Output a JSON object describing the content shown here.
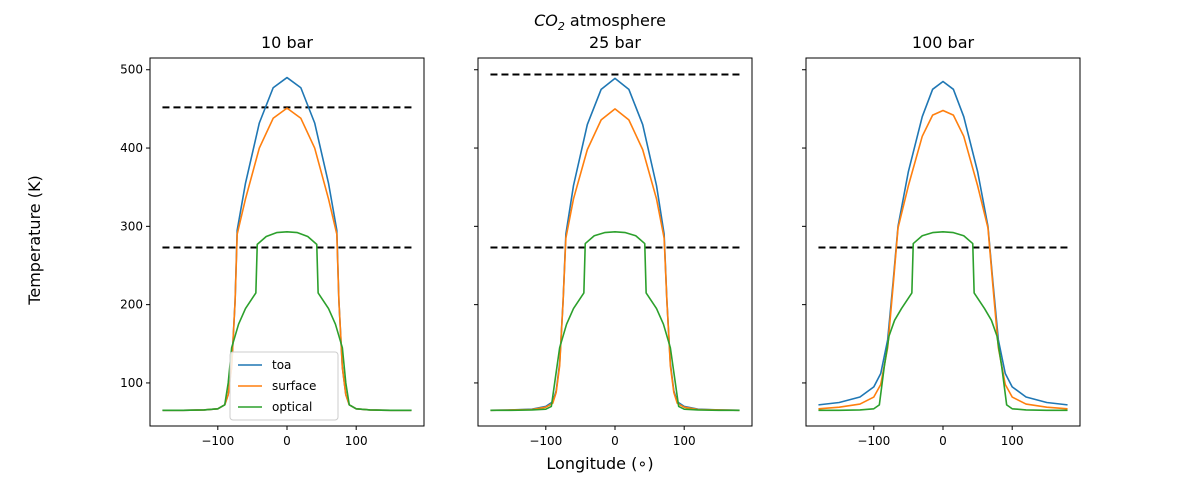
{
  "figure": {
    "suptitle_main": "CO",
    "suptitle_sub": "2",
    "suptitle_rest": " atmosphere",
    "ylabel": "Temperature (K)",
    "xlabel": "Longitude (∘)"
  },
  "chart_data": [
    {
      "type": "line",
      "title": "10 bar",
      "xlim": [
        -198,
        198
      ],
      "ylim": [
        45,
        515
      ],
      "xticks": [
        -100,
        0,
        100
      ],
      "yticks": [
        100,
        200,
        300,
        400,
        500
      ],
      "show_yticklabels": true,
      "legend": {
        "placement": "lower-center",
        "entries": [
          "toa",
          "surface",
          "optical"
        ]
      },
      "hlines": [
        452,
        273
      ],
      "series": [
        {
          "name": "toa",
          "color": "#1f77b4",
          "points": [
            [
              -180,
              65
            ],
            [
              -150,
              65
            ],
            [
              -120,
              65.5
            ],
            [
              -100,
              67
            ],
            [
              -90,
              72
            ],
            [
              -85,
              85
            ],
            [
              -80,
              120
            ],
            [
              -75,
              205
            ],
            [
              -72,
              295
            ],
            [
              -60,
              355
            ],
            [
              -40,
              432
            ],
            [
              -20,
              477
            ],
            [
              0,
              490
            ],
            [
              20,
              477
            ],
            [
              40,
              432
            ],
            [
              60,
              355
            ],
            [
              72,
              295
            ],
            [
              75,
              205
            ],
            [
              80,
              120
            ],
            [
              85,
              85
            ],
            [
              90,
              72
            ],
            [
              100,
              67
            ],
            [
              120,
              65.5
            ],
            [
              150,
              65
            ],
            [
              180,
              65
            ]
          ]
        },
        {
          "name": "surface",
          "color": "#ff7f0e",
          "points": [
            [
              -180,
              65
            ],
            [
              -150,
              65
            ],
            [
              -120,
              65.5
            ],
            [
              -100,
              67
            ],
            [
              -90,
              72
            ],
            [
              -85,
              85
            ],
            [
              -80,
              120
            ],
            [
              -75,
              205
            ],
            [
              -72,
              290
            ],
            [
              -60,
              335
            ],
            [
              -40,
              400
            ],
            [
              -20,
              438
            ],
            [
              0,
              451
            ],
            [
              20,
              438
            ],
            [
              40,
              400
            ],
            [
              60,
              335
            ],
            [
              72,
              290
            ],
            [
              75,
              205
            ],
            [
              80,
              120
            ],
            [
              85,
              85
            ],
            [
              90,
              72
            ],
            [
              100,
              67
            ],
            [
              120,
              65.5
            ],
            [
              150,
              65
            ],
            [
              180,
              65
            ]
          ]
        },
        {
          "name": "optical",
          "color": "#2ca02c",
          "points": [
            [
              -180,
              65
            ],
            [
              -150,
              65
            ],
            [
              -120,
              65.5
            ],
            [
              -100,
              67
            ],
            [
              -90,
              72
            ],
            [
              -85,
              100
            ],
            [
              -80,
              145
            ],
            [
              -70,
              175
            ],
            [
              -60,
              195
            ],
            [
              -45,
              215
            ],
            [
              -43,
              277
            ],
            [
              -30,
              287
            ],
            [
              -15,
              292
            ],
            [
              0,
              293
            ],
            [
              15,
              292
            ],
            [
              30,
              287
            ],
            [
              43,
              277
            ],
            [
              45,
              215
            ],
            [
              60,
              195
            ],
            [
              70,
              175
            ],
            [
              80,
              145
            ],
            [
              85,
              100
            ],
            [
              90,
              72
            ],
            [
              100,
              67
            ],
            [
              120,
              65.5
            ],
            [
              150,
              65
            ],
            [
              180,
              65
            ]
          ]
        }
      ]
    },
    {
      "type": "line",
      "title": "25 bar",
      "xlim": [
        -198,
        198
      ],
      "ylim": [
        45,
        515
      ],
      "xticks": [
        -100,
        0,
        100
      ],
      "yticks": [
        100,
        200,
        300,
        400,
        500
      ],
      "show_yticklabels": false,
      "hlines": [
        494,
        273
      ],
      "series": [
        {
          "name": "toa",
          "color": "#1f77b4",
          "points": [
            [
              -180,
              65
            ],
            [
              -150,
              65.5
            ],
            [
              -120,
              66.5
            ],
            [
              -100,
              70
            ],
            [
              -90,
              76
            ],
            [
              -85,
              90
            ],
            [
              -80,
              125
            ],
            [
              -75,
              205
            ],
            [
              -71,
              290
            ],
            [
              -60,
              352
            ],
            [
              -40,
              430
            ],
            [
              -20,
              475
            ],
            [
              0,
              489
            ],
            [
              20,
              475
            ],
            [
              40,
              430
            ],
            [
              60,
              352
            ],
            [
              71,
              290
            ],
            [
              75,
              205
            ],
            [
              80,
              125
            ],
            [
              85,
              90
            ],
            [
              90,
              76
            ],
            [
              100,
              70
            ],
            [
              120,
              66.5
            ],
            [
              150,
              65.5
            ],
            [
              180,
              65
            ]
          ]
        },
        {
          "name": "surface",
          "color": "#ff7f0e",
          "points": [
            [
              -180,
              65
            ],
            [
              -150,
              65.5
            ],
            [
              -120,
              66
            ],
            [
              -100,
              69
            ],
            [
              -90,
              74
            ],
            [
              -85,
              88
            ],
            [
              -80,
              122
            ],
            [
              -75,
              205
            ],
            [
              -71,
              285
            ],
            [
              -60,
              335
            ],
            [
              -40,
              398
            ],
            [
              -20,
              436
            ],
            [
              0,
              450
            ],
            [
              20,
              436
            ],
            [
              40,
              398
            ],
            [
              60,
              335
            ],
            [
              71,
              285
            ],
            [
              75,
              205
            ],
            [
              80,
              122
            ],
            [
              85,
              88
            ],
            [
              90,
              74
            ],
            [
              100,
              69
            ],
            [
              120,
              66
            ],
            [
              150,
              65.5
            ],
            [
              180,
              65
            ]
          ]
        },
        {
          "name": "optical",
          "color": "#2ca02c",
          "points": [
            [
              -180,
              65
            ],
            [
              -150,
              65
            ],
            [
              -120,
              65.5
            ],
            [
              -100,
              66.5
            ],
            [
              -92,
              70
            ],
            [
              -88,
              95
            ],
            [
              -80,
              145
            ],
            [
              -70,
              175
            ],
            [
              -60,
              195
            ],
            [
              -45,
              215
            ],
            [
              -43,
              278
            ],
            [
              -30,
              288
            ],
            [
              -15,
              292
            ],
            [
              0,
              293
            ],
            [
              15,
              292
            ],
            [
              30,
              288
            ],
            [
              43,
              278
            ],
            [
              45,
              215
            ],
            [
              60,
              195
            ],
            [
              70,
              175
            ],
            [
              80,
              145
            ],
            [
              88,
              95
            ],
            [
              92,
              70
            ],
            [
              100,
              66.5
            ],
            [
              120,
              65.5
            ],
            [
              150,
              65
            ],
            [
              180,
              65
            ]
          ]
        }
      ]
    },
    {
      "type": "line",
      "title": "100 bar",
      "xlim": [
        -198,
        198
      ],
      "ylim": [
        45,
        515
      ],
      "xticks": [
        -100,
        0,
        100
      ],
      "yticks": [
        100,
        200,
        300,
        400,
        500
      ],
      "show_yticklabels": false,
      "hlines": [
        273
      ],
      "series": [
        {
          "name": "toa",
          "color": "#1f77b4",
          "points": [
            [
              -180,
              72
            ],
            [
              -150,
              75
            ],
            [
              -120,
              82
            ],
            [
              -100,
              95
            ],
            [
              -90,
              112
            ],
            [
              -80,
              155
            ],
            [
              -72,
              230
            ],
            [
              -65,
              300
            ],
            [
              -50,
              370
            ],
            [
              -30,
              440
            ],
            [
              -15,
              475
            ],
            [
              0,
              485
            ],
            [
              15,
              475
            ],
            [
              30,
              440
            ],
            [
              50,
              370
            ],
            [
              65,
              300
            ],
            [
              72,
              230
            ],
            [
              80,
              155
            ],
            [
              90,
              112
            ],
            [
              100,
              95
            ],
            [
              120,
              82
            ],
            [
              150,
              75
            ],
            [
              180,
              72
            ]
          ]
        },
        {
          "name": "surface",
          "color": "#ff7f0e",
          "points": [
            [
              -180,
              67
            ],
            [
              -150,
              69
            ],
            [
              -120,
              73
            ],
            [
              -100,
              82
            ],
            [
              -90,
              98
            ],
            [
              -80,
              145
            ],
            [
              -72,
              225
            ],
            [
              -65,
              298
            ],
            [
              -50,
              352
            ],
            [
              -30,
              415
            ],
            [
              -15,
              442
            ],
            [
              0,
              448
            ],
            [
              15,
              442
            ],
            [
              30,
              415
            ],
            [
              50,
              352
            ],
            [
              65,
              298
            ],
            [
              72,
              225
            ],
            [
              80,
              145
            ],
            [
              90,
              98
            ],
            [
              100,
              82
            ],
            [
              120,
              73
            ],
            [
              150,
              69
            ],
            [
              180,
              67
            ]
          ]
        },
        {
          "name": "optical",
          "color": "#2ca02c",
          "points": [
            [
              -180,
              65
            ],
            [
              -150,
              65
            ],
            [
              -120,
              65.5
            ],
            [
              -100,
              67
            ],
            [
              -92,
              72
            ],
            [
              -85,
              120
            ],
            [
              -78,
              160
            ],
            [
              -70,
              180
            ],
            [
              -60,
              195
            ],
            [
              -45,
              215
            ],
            [
              -43,
              278
            ],
            [
              -30,
              288
            ],
            [
              -15,
              292
            ],
            [
              0,
              293
            ],
            [
              15,
              292
            ],
            [
              30,
              288
            ],
            [
              43,
              278
            ],
            [
              45,
              215
            ],
            [
              60,
              195
            ],
            [
              70,
              180
            ],
            [
              78,
              160
            ],
            [
              85,
              120
            ],
            [
              92,
              72
            ],
            [
              100,
              67
            ],
            [
              120,
              65.5
            ],
            [
              150,
              65
            ],
            [
              180,
              65
            ]
          ]
        }
      ]
    }
  ]
}
